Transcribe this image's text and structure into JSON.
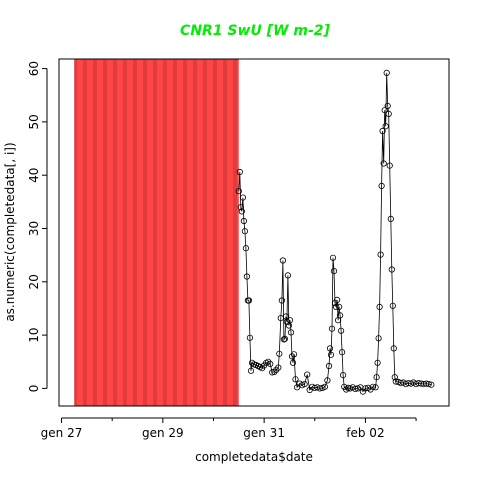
{
  "chart_data": {
    "type": "scatter",
    "title": "CNR1 SwU [W m-2]",
    "title_color": "#00ee00",
    "xlabel": "completedata$date",
    "ylabel": "as.numeric(completedata[, i])",
    "x_tick_labels": [
      "gen 27",
      "gen 29",
      "gen 31",
      "feb 02"
    ],
    "y_ticks": [
      0,
      10,
      20,
      30,
      40,
      50,
      60
    ],
    "xlim_days": [
      26.95,
      34.65
    ],
    "ylim": [
      -3.3,
      61.8
    ],
    "shaded_region": {
      "x_from_day": 27.25,
      "x_to_day": 30.5,
      "color": "#ff4444"
    },
    "grid": false,
    "legend": "none",
    "series": [
      {
        "style": "points-and-lines",
        "point_shape": "open-circle",
        "values": [
          [
            30.5,
            37.0
          ],
          [
            30.52,
            40.6
          ],
          [
            30.54,
            34.0
          ],
          [
            30.56,
            33.2
          ],
          [
            30.58,
            35.8
          ],
          [
            30.6,
            31.4
          ],
          [
            30.62,
            29.5
          ],
          [
            30.64,
            26.3
          ],
          [
            30.66,
            21.0
          ],
          [
            30.68,
            16.5
          ],
          [
            30.7,
            16.5
          ],
          [
            30.72,
            9.5
          ],
          [
            30.74,
            3.3
          ],
          [
            30.76,
            4.8
          ],
          [
            30.8,
            4.5
          ],
          [
            30.84,
            4.4
          ],
          [
            30.88,
            4.2
          ],
          [
            30.92,
            4.0
          ],
          [
            30.96,
            3.8
          ],
          [
            31.0,
            4.3
          ],
          [
            31.04,
            4.8
          ],
          [
            31.08,
            5.0
          ],
          [
            31.12,
            4.6
          ],
          [
            31.16,
            3.0
          ],
          [
            31.2,
            3.1
          ],
          [
            31.24,
            3.5
          ],
          [
            31.28,
            3.9
          ],
          [
            31.3,
            6.5
          ],
          [
            31.33,
            13.2
          ],
          [
            31.35,
            16.5
          ],
          [
            31.37,
            24.0
          ],
          [
            31.39,
            9.2
          ],
          [
            31.41,
            9.3
          ],
          [
            31.43,
            13.5
          ],
          [
            31.45,
            12.5
          ],
          [
            31.47,
            21.2
          ],
          [
            31.49,
            11.8
          ],
          [
            31.51,
            12.8
          ],
          [
            31.53,
            10.5
          ],
          [
            31.55,
            6.0
          ],
          [
            31.57,
            4.8
          ],
          [
            31.59,
            6.4
          ],
          [
            31.62,
            1.7
          ],
          [
            31.65,
            0.2
          ],
          [
            31.7,
            0.9
          ],
          [
            31.75,
            0.6
          ],
          [
            31.8,
            0.8
          ],
          [
            31.85,
            2.6
          ],
          [
            31.9,
            -0.3
          ],
          [
            31.95,
            0.3
          ],
          [
            32.0,
            0.1
          ],
          [
            32.05,
            0.2
          ],
          [
            32.1,
            0.0
          ],
          [
            32.15,
            0.1
          ],
          [
            32.2,
            0.3
          ],
          [
            32.25,
            1.5
          ],
          [
            32.28,
            4.2
          ],
          [
            32.3,
            7.5
          ],
          [
            32.32,
            6.3
          ],
          [
            32.34,
            11.2
          ],
          [
            32.36,
            24.5
          ],
          [
            32.38,
            22.0
          ],
          [
            32.4,
            16.0
          ],
          [
            32.42,
            15.3
          ],
          [
            32.44,
            16.6
          ],
          [
            32.46,
            12.8
          ],
          [
            32.48,
            15.3
          ],
          [
            32.5,
            13.7
          ],
          [
            32.52,
            10.8
          ],
          [
            32.54,
            6.8
          ],
          [
            32.56,
            2.5
          ],
          [
            32.58,
            0.3
          ],
          [
            32.62,
            -0.2
          ],
          [
            32.66,
            0.1
          ],
          [
            32.7,
            0.0
          ],
          [
            32.75,
            0.2
          ],
          [
            32.8,
            -0.1
          ],
          [
            32.85,
            0.0
          ],
          [
            32.9,
            0.2
          ],
          [
            32.95,
            -0.6
          ],
          [
            33.0,
            0.0
          ],
          [
            33.05,
            0.1
          ],
          [
            33.1,
            -0.2
          ],
          [
            33.15,
            0.3
          ],
          [
            33.2,
            0.2
          ],
          [
            33.22,
            2.1
          ],
          [
            33.24,
            4.8
          ],
          [
            33.26,
            9.4
          ],
          [
            33.28,
            15.3
          ],
          [
            33.3,
            25.1
          ],
          [
            33.32,
            38.0
          ],
          [
            33.34,
            48.3
          ],
          [
            33.36,
            42.2
          ],
          [
            33.38,
            52.2
          ],
          [
            33.4,
            49.2
          ],
          [
            33.42,
            59.2
          ],
          [
            33.44,
            53.0
          ],
          [
            33.46,
            51.5
          ],
          [
            33.48,
            41.8
          ],
          [
            33.5,
            31.8
          ],
          [
            33.52,
            22.3
          ],
          [
            33.54,
            15.5
          ],
          [
            33.56,
            7.5
          ],
          [
            33.58,
            2.1
          ],
          [
            33.6,
            1.3
          ],
          [
            33.65,
            1.2
          ],
          [
            33.7,
            1.0
          ],
          [
            33.75,
            1.1
          ],
          [
            33.8,
            0.8
          ],
          [
            33.85,
            1.0
          ],
          [
            33.9,
            0.9
          ],
          [
            33.95,
            1.1
          ],
          [
            34.0,
            0.8
          ],
          [
            34.05,
            1.0
          ],
          [
            34.1,
            0.9
          ],
          [
            34.15,
            0.8
          ],
          [
            34.2,
            0.9
          ],
          [
            34.25,
            0.8
          ],
          [
            34.3,
            0.7
          ]
        ]
      }
    ]
  }
}
